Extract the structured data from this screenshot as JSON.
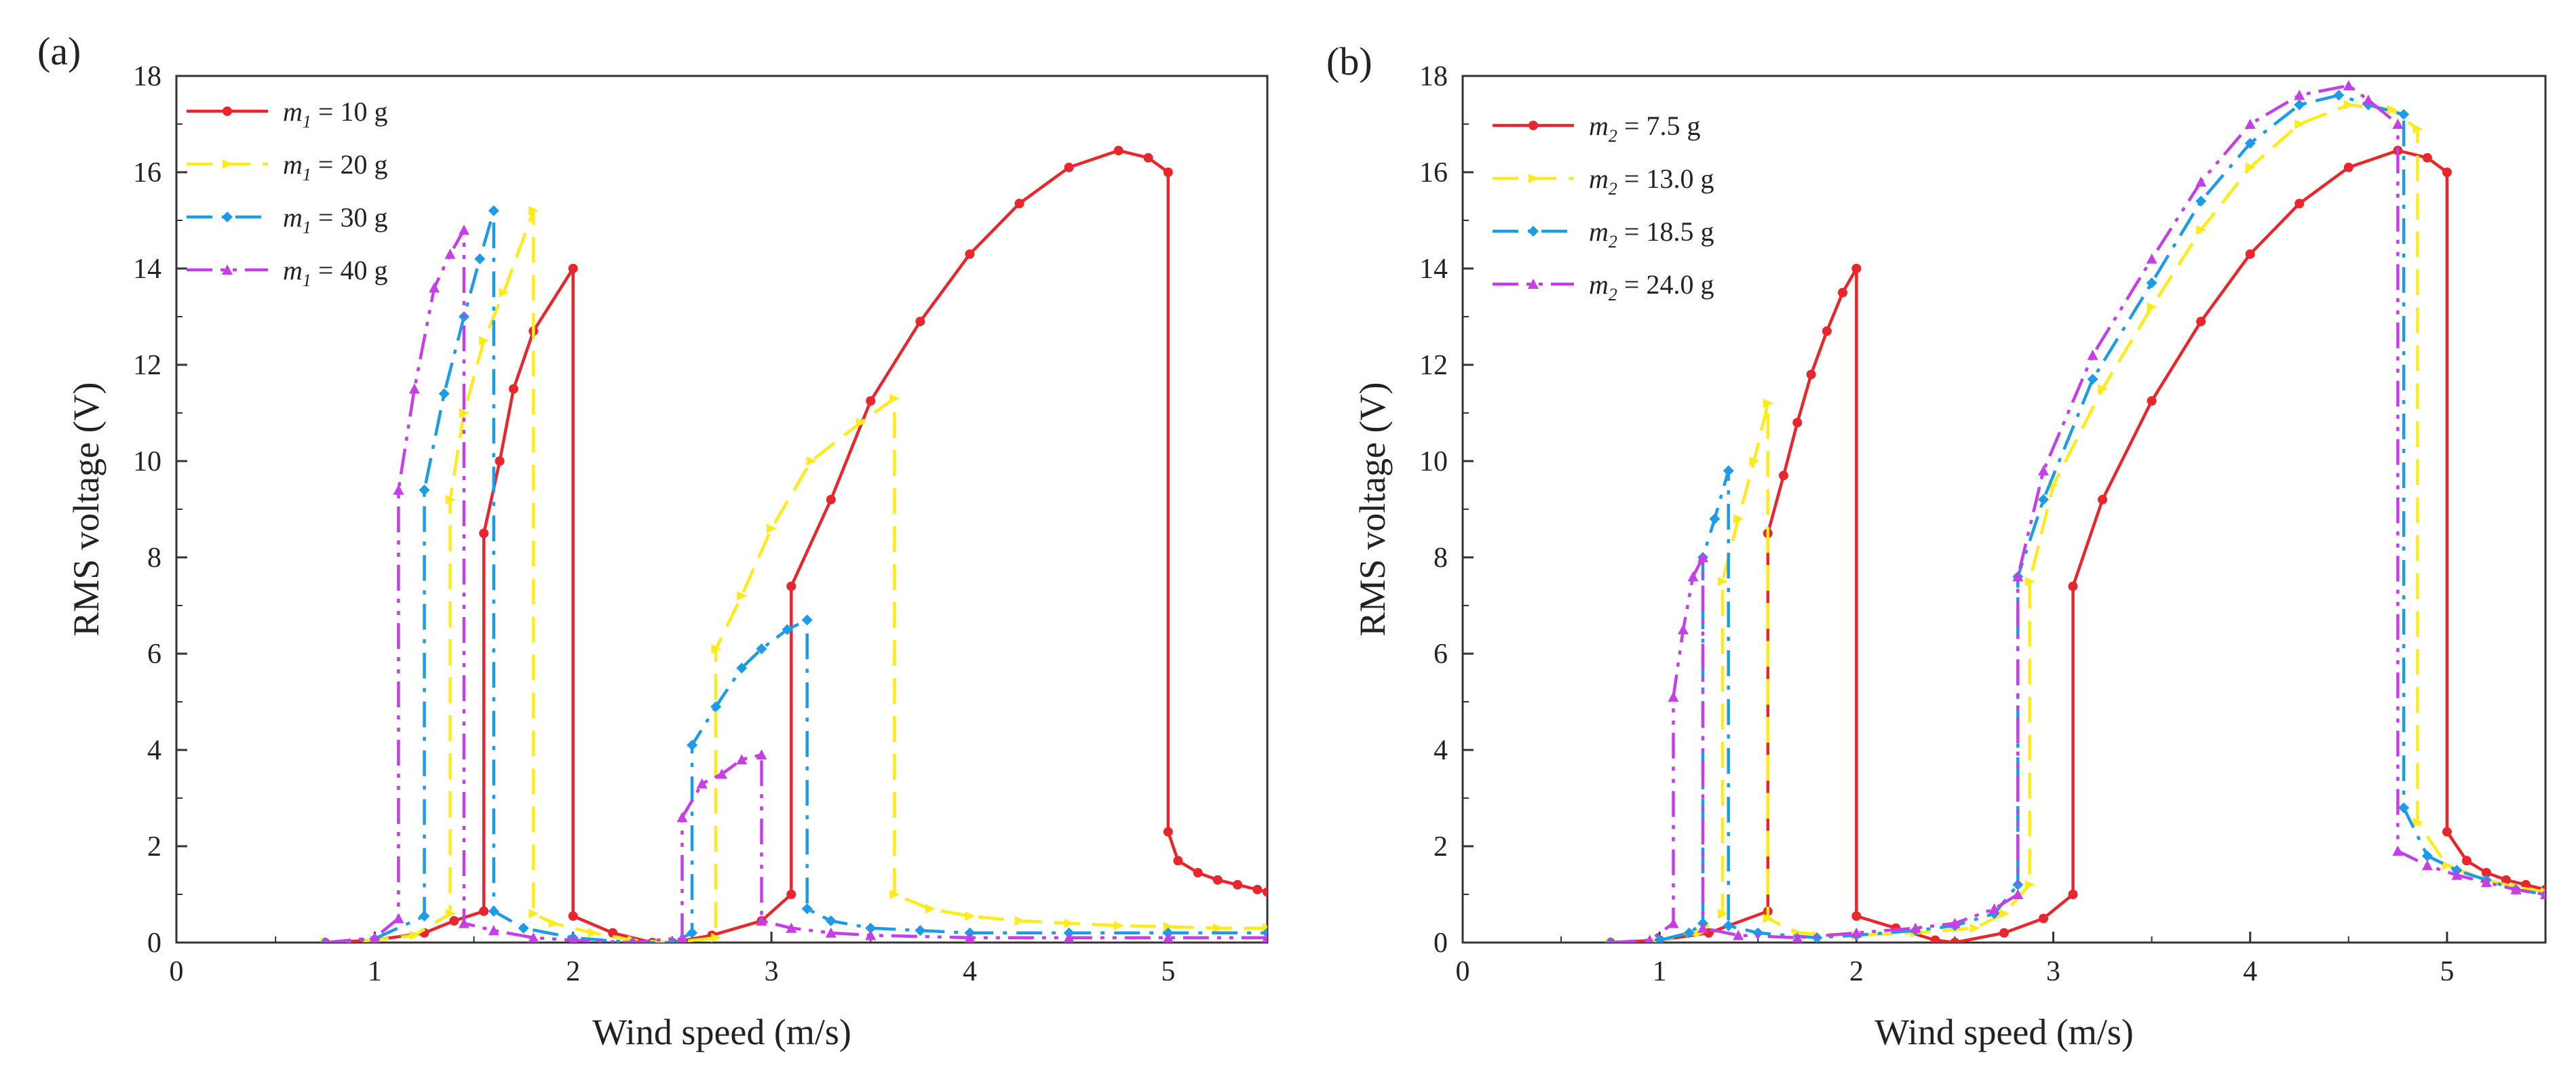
{
  "figure": {
    "description_labels": [
      "(a)",
      "(b)"
    ]
  },
  "chart_data": [
    {
      "type": "line",
      "panel_label": "(a)",
      "xlabel": "Wind speed (m/s)",
      "ylabel": "RMS voltage (V)",
      "xlim": [
        0,
        5.5
      ],
      "ylim": [
        0,
        18
      ],
      "xticks": [
        0,
        1,
        2,
        3,
        4,
        5
      ],
      "yticks": [
        0,
        2,
        4,
        6,
        8,
        10,
        12,
        14,
        16,
        18
      ],
      "legend_position": "top-left",
      "series": [
        {
          "name": "m1 = 10 g",
          "var": "m",
          "sub": "1",
          "value_text": " = 10 g",
          "color": "#e8262c",
          "dash": "solid",
          "marker": "circle",
          "points": [
            [
              0.75,
              0
            ],
            [
              1.0,
              0.05
            ],
            [
              1.25,
              0.2
            ],
            [
              1.4,
              0.45
            ],
            [
              1.55,
              0.65
            ],
            [
              1.55,
              8.5
            ],
            [
              1.63,
              10
            ],
            [
              1.7,
              11.5
            ],
            [
              1.8,
              12.7
            ],
            [
              2.0,
              14.0
            ],
            [
              2.0,
              0.55
            ],
            [
              2.2,
              0.2
            ],
            [
              2.4,
              0
            ],
            [
              2.5,
              0
            ],
            [
              2.7,
              0.15
            ],
            [
              2.95,
              0.45
            ],
            [
              3.1,
              1.0
            ],
            [
              3.1,
              7.4
            ],
            [
              3.3,
              9.2
            ],
            [
              3.5,
              11.25
            ],
            [
              3.75,
              12.9
            ],
            [
              4.0,
              14.3
            ],
            [
              4.25,
              15.35
            ],
            [
              4.5,
              16.1
            ],
            [
              4.75,
              16.45
            ],
            [
              4.9,
              16.3
            ],
            [
              5.0,
              16.0
            ],
            [
              5.0,
              2.3
            ],
            [
              5.05,
              1.7
            ],
            [
              5.15,
              1.45
            ],
            [
              5.25,
              1.3
            ],
            [
              5.35,
              1.2
            ],
            [
              5.45,
              1.1
            ],
            [
              5.5,
              1.05
            ]
          ]
        },
        {
          "name": "m1 = 20 g",
          "var": "m",
          "sub": "1",
          "value_text": " = 20 g",
          "color": "#ffeb1a",
          "dash": "dash",
          "marker": "tri-right",
          "points": [
            [
              0.75,
              0
            ],
            [
              1.0,
              0.05
            ],
            [
              1.2,
              0.15
            ],
            [
              1.38,
              0.6
            ],
            [
              1.38,
              9.2
            ],
            [
              1.45,
              11.0
            ],
            [
              1.55,
              12.5
            ],
            [
              1.65,
              13.5
            ],
            [
              1.8,
              15.2
            ],
            [
              1.8,
              0.6
            ],
            [
              1.9,
              0.4
            ],
            [
              2.1,
              0.2
            ],
            [
              2.3,
              0.05
            ],
            [
              2.5,
              0
            ],
            [
              2.72,
              0.1
            ],
            [
              2.72,
              6.1
            ],
            [
              2.85,
              7.2
            ],
            [
              3.0,
              8.6
            ],
            [
              3.2,
              10.0
            ],
            [
              3.45,
              10.8
            ],
            [
              3.62,
              11.3
            ],
            [
              3.62,
              1.0
            ],
            [
              3.8,
              0.7
            ],
            [
              4.0,
              0.55
            ],
            [
              4.25,
              0.45
            ],
            [
              4.5,
              0.4
            ],
            [
              4.75,
              0.35
            ],
            [
              5.0,
              0.33
            ],
            [
              5.25,
              0.3
            ],
            [
              5.5,
              0.3
            ]
          ]
        },
        {
          "name": "m1 = 30 g",
          "var": "m",
          "sub": "1",
          "value_text": " = 30 g",
          "color": "#1c9ce8",
          "dash": "dashdot",
          "marker": "diamond",
          "points": [
            [
              0.75,
              0
            ],
            [
              1.0,
              0.08
            ],
            [
              1.25,
              0.55
            ],
            [
              1.25,
              9.4
            ],
            [
              1.35,
              11.4
            ],
            [
              1.45,
              13.0
            ],
            [
              1.53,
              14.2
            ],
            [
              1.6,
              15.2
            ],
            [
              1.6,
              0.65
            ],
            [
              1.75,
              0.3
            ],
            [
              2.0,
              0.1
            ],
            [
              2.3,
              0
            ],
            [
              2.5,
              0
            ],
            [
              2.6,
              0.2
            ],
            [
              2.6,
              4.1
            ],
            [
              2.72,
              4.9
            ],
            [
              2.85,
              5.7
            ],
            [
              2.95,
              6.1
            ],
            [
              3.08,
              6.5
            ],
            [
              3.18,
              6.7
            ],
            [
              3.18,
              0.7
            ],
            [
              3.3,
              0.45
            ],
            [
              3.5,
              0.3
            ],
            [
              3.75,
              0.25
            ],
            [
              4.0,
              0.2
            ],
            [
              4.5,
              0.2
            ],
            [
              5.0,
              0.2
            ],
            [
              5.5,
              0.2
            ]
          ]
        },
        {
          "name": "m1 = 40 g",
          "var": "m",
          "sub": "1",
          "value_text": " = 40 g",
          "color": "#c53ee6",
          "dash": "dashdotdot",
          "marker": "triangle",
          "points": [
            [
              0.75,
              0
            ],
            [
              1.0,
              0.1
            ],
            [
              1.12,
              0.5
            ],
            [
              1.12,
              9.4
            ],
            [
              1.2,
              11.5
            ],
            [
              1.3,
              13.6
            ],
            [
              1.38,
              14.3
            ],
            [
              1.45,
              14.8
            ],
            [
              1.45,
              0.4
            ],
            [
              1.6,
              0.25
            ],
            [
              1.8,
              0.1
            ],
            [
              2.0,
              0.05
            ],
            [
              2.3,
              0
            ],
            [
              2.55,
              0.1
            ],
            [
              2.55,
              2.6
            ],
            [
              2.65,
              3.3
            ],
            [
              2.75,
              3.5
            ],
            [
              2.85,
              3.8
            ],
            [
              2.95,
              3.9
            ],
            [
              2.95,
              0.45
            ],
            [
              3.1,
              0.3
            ],
            [
              3.3,
              0.2
            ],
            [
              3.5,
              0.15
            ],
            [
              4.0,
              0.1
            ],
            [
              4.5,
              0.1
            ],
            [
              5.0,
              0.1
            ],
            [
              5.5,
              0.1
            ]
          ]
        }
      ]
    },
    {
      "type": "line",
      "panel_label": "(b)",
      "xlabel": "Wind speed (m/s)",
      "ylabel": "RMS voltage (V)",
      "xlim": [
        0,
        5.5
      ],
      "ylim": [
        0,
        18
      ],
      "xticks": [
        0,
        1,
        2,
        3,
        4,
        5
      ],
      "yticks": [
        0,
        2,
        4,
        6,
        8,
        10,
        12,
        14,
        16,
        18
      ],
      "legend_position": "top-left",
      "series": [
        {
          "name": "m2 = 7.5 g",
          "var": "m",
          "sub": "2",
          "value_text": " = 7.5 g",
          "color": "#e8262c",
          "dash": "solid",
          "marker": "circle",
          "points": [
            [
              0.75,
              0
            ],
            [
              1.0,
              0.05
            ],
            [
              1.25,
              0.2
            ],
            [
              1.55,
              0.65
            ],
            [
              1.55,
              8.5
            ],
            [
              1.63,
              9.7
            ],
            [
              1.7,
              10.8
            ],
            [
              1.77,
              11.8
            ],
            [
              1.85,
              12.7
            ],
            [
              1.93,
              13.5
            ],
            [
              2.0,
              14.0
            ],
            [
              2.0,
              0.55
            ],
            [
              2.2,
              0.3
            ],
            [
              2.4,
              0.05
            ],
            [
              2.5,
              0
            ],
            [
              2.75,
              0.2
            ],
            [
              2.95,
              0.5
            ],
            [
              3.1,
              1.0
            ],
            [
              3.1,
              7.4
            ],
            [
              3.25,
              9.2
            ],
            [
              3.5,
              11.25
            ],
            [
              3.75,
              12.9
            ],
            [
              4.0,
              14.3
            ],
            [
              4.25,
              15.35
            ],
            [
              4.5,
              16.1
            ],
            [
              4.75,
              16.45
            ],
            [
              4.9,
              16.3
            ],
            [
              5.0,
              16.0
            ],
            [
              5.0,
              2.3
            ],
            [
              5.1,
              1.7
            ],
            [
              5.2,
              1.45
            ],
            [
              5.3,
              1.3
            ],
            [
              5.4,
              1.2
            ],
            [
              5.5,
              1.1
            ]
          ]
        },
        {
          "name": "m2 = 13.0 g",
          "var": "m",
          "sub": "2",
          "value_text": " = 13.0 g",
          "color": "#ffeb1a",
          "dash": "dash",
          "marker": "tri-right",
          "points": [
            [
              0.75,
              0
            ],
            [
              1.0,
              0.05
            ],
            [
              1.2,
              0.2
            ],
            [
              1.32,
              0.6
            ],
            [
              1.32,
              7.5
            ],
            [
              1.4,
              8.8
            ],
            [
              1.48,
              10.0
            ],
            [
              1.55,
              11.2
            ],
            [
              1.55,
              0.5
            ],
            [
              1.7,
              0.2
            ],
            [
              2.0,
              0.15
            ],
            [
              2.3,
              0.2
            ],
            [
              2.6,
              0.3
            ],
            [
              2.75,
              0.6
            ],
            [
              2.88,
              1.2
            ],
            [
              2.88,
              7.5
            ],
            [
              3.0,
              9.5
            ],
            [
              3.25,
              11.5
            ],
            [
              3.5,
              13.2
            ],
            [
              3.75,
              14.8
            ],
            [
              4.0,
              16.1
            ],
            [
              4.25,
              17.0
            ],
            [
              4.5,
              17.4
            ],
            [
              4.72,
              17.3
            ],
            [
              4.85,
              16.9
            ],
            [
              4.85,
              2.5
            ],
            [
              5.0,
              1.6
            ],
            [
              5.2,
              1.3
            ],
            [
              5.35,
              1.15
            ],
            [
              5.5,
              1.05
            ]
          ]
        },
        {
          "name": "m2 = 18.5 g",
          "var": "m",
          "sub": "2",
          "value_text": " = 18.5 g",
          "color": "#1c9ce8",
          "dash": "dashdot",
          "marker": "diamond",
          "points": [
            [
              0.75,
              0
            ],
            [
              1.0,
              0.05
            ],
            [
              1.15,
              0.2
            ],
            [
              1.22,
              0.4
            ],
            [
              1.22,
              8.0
            ],
            [
              1.28,
              8.8
            ],
            [
              1.35,
              9.8
            ],
            [
              1.35,
              0.35
            ],
            [
              1.5,
              0.2
            ],
            [
              1.8,
              0.1
            ],
            [
              2.0,
              0.15
            ],
            [
              2.3,
              0.25
            ],
            [
              2.5,
              0.35
            ],
            [
              2.7,
              0.6
            ],
            [
              2.82,
              1.2
            ],
            [
              2.82,
              7.6
            ],
            [
              2.95,
              9.2
            ],
            [
              3.2,
              11.7
            ],
            [
              3.5,
              13.7
            ],
            [
              3.75,
              15.4
            ],
            [
              4.0,
              16.6
            ],
            [
              4.25,
              17.4
            ],
            [
              4.45,
              17.6
            ],
            [
              4.6,
              17.4
            ],
            [
              4.78,
              17.2
            ],
            [
              4.78,
              2.8
            ],
            [
              4.9,
              1.8
            ],
            [
              5.05,
              1.5
            ],
            [
              5.2,
              1.3
            ],
            [
              5.35,
              1.1
            ],
            [
              5.5,
              1.0
            ]
          ]
        },
        {
          "name": "m2 = 24.0 g",
          "var": "m",
          "sub": "2",
          "value_text": " = 24.0 g",
          "color": "#c53ee6",
          "dash": "dashdotdot",
          "marker": "triangle",
          "points": [
            [
              0.75,
              0
            ],
            [
              0.95,
              0.05
            ],
            [
              1.07,
              0.4
            ],
            [
              1.07,
              5.1
            ],
            [
              1.12,
              6.5
            ],
            [
              1.17,
              7.6
            ],
            [
              1.22,
              8.0
            ],
            [
              1.22,
              0.3
            ],
            [
              1.4,
              0.15
            ],
            [
              1.7,
              0.1
            ],
            [
              2.0,
              0.2
            ],
            [
              2.3,
              0.3
            ],
            [
              2.5,
              0.4
            ],
            [
              2.7,
              0.7
            ],
            [
              2.82,
              1.0
            ],
            [
              2.82,
              7.6
            ],
            [
              2.95,
              9.8
            ],
            [
              3.2,
              12.2
            ],
            [
              3.5,
              14.2
            ],
            [
              3.75,
              15.8
            ],
            [
              4.0,
              17.0
            ],
            [
              4.25,
              17.6
            ],
            [
              4.5,
              17.8
            ],
            [
              4.6,
              17.5
            ],
            [
              4.75,
              17.0
            ],
            [
              4.75,
              1.9
            ],
            [
              4.9,
              1.6
            ],
            [
              5.05,
              1.4
            ],
            [
              5.2,
              1.25
            ],
            [
              5.35,
              1.1
            ],
            [
              5.5,
              1.0
            ]
          ]
        }
      ]
    }
  ]
}
